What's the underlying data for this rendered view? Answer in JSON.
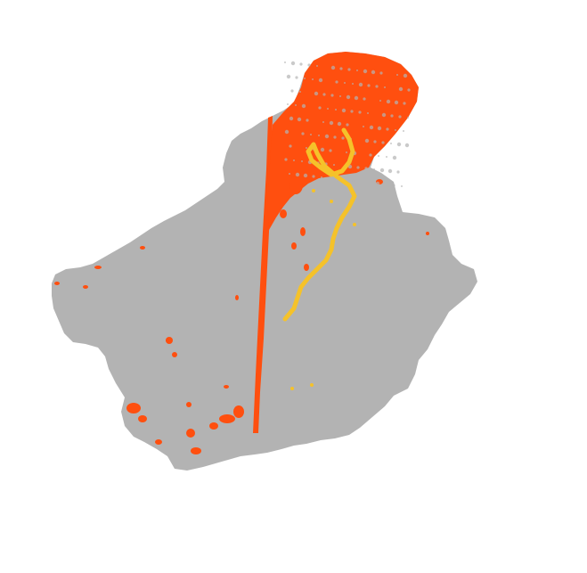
{
  "map": {
    "background_color": "#ffffff",
    "region_fill_color": "#b3b3b3",
    "classes": [
      {
        "name": "",
        "color": "#ff4f0f"
      },
      {
        "name": "",
        "color": "#f5c22a"
      }
    ]
  }
}
